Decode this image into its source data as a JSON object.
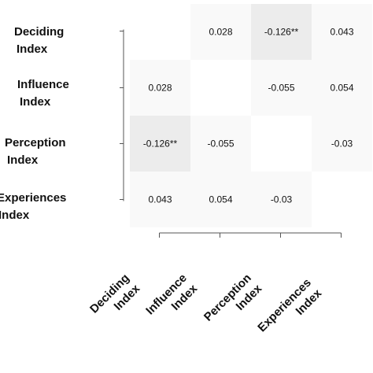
{
  "chart_data": {
    "type": "heatmap",
    "rows": [
      [
        "Deciding",
        "Index"
      ],
      [
        "Influence",
        "Index"
      ],
      [
        "Perception",
        "Index"
      ],
      [
        "Experiences",
        "Index"
      ]
    ],
    "columns": [
      [
        "Deciding",
        "Index"
      ],
      [
        "Influence",
        "Index"
      ],
      [
        "Perception",
        "Index"
      ],
      [
        "Experiences",
        "Index"
      ]
    ],
    "values": [
      [
        null,
        0.028,
        -0.126,
        0.043
      ],
      [
        0.028,
        null,
        -0.055,
        0.054
      ],
      [
        -0.126,
        -0.055,
        null,
        -0.03
      ],
      [
        0.043,
        0.054,
        -0.03,
        null
      ]
    ],
    "labels": [
      [
        "",
        "0.028",
        "-0.126**",
        "0.043"
      ],
      [
        "0.028",
        "",
        "-0.055",
        "0.054"
      ],
      [
        "-0.126**",
        "-0.055",
        "",
        "-0.03"
      ],
      [
        "0.043",
        "0.054",
        "-0.03",
        ""
      ]
    ],
    "colors": {
      "strong": "#ececec",
      "light": "#f9f9f9",
      "empty": "#ffffff"
    }
  }
}
